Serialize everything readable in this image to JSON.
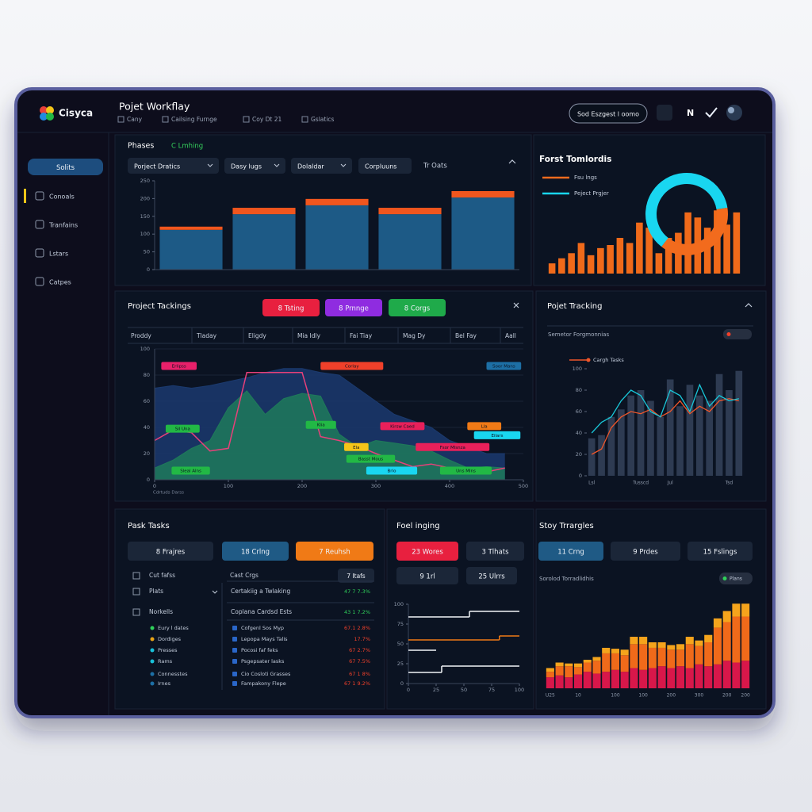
{
  "header": {
    "logo": "Cisyca",
    "title": "Pojet Workflay",
    "breadcrumbs": [
      "Cany",
      "Cailsing Furnge",
      "Coy Dt 21",
      "Gslatics"
    ],
    "search": "Sod Eszgest l oomo",
    "user_initial": "N"
  },
  "sidebar": {
    "button": "Solits",
    "items": [
      "Conoals",
      "Tranfains",
      "Lstars",
      "Catpes"
    ]
  },
  "panels": {
    "phases": {
      "title": "Phases",
      "status": "C Lmhing",
      "filters": [
        "Porject Dratics",
        "Dasy lugs",
        "Dolaldar",
        "Corpluuns"
      ],
      "link": "Tr Oats"
    },
    "forecast": {
      "title": "Forst Tomlordis"
    },
    "project_tracking": {
      "title": "Project Tackings",
      "tags": [
        "8 Tsting",
        "8 Prnnge",
        "8 Corgs"
      ],
      "columns": [
        "Proddy",
        "Tladay",
        "Eligdy",
        "Mia Idly",
        "Fai Tiay",
        "Mag Dy",
        "Bel Fay",
        "Aall"
      ],
      "caption": "Cdrtuds Darss"
    },
    "tracking": {
      "title": "Pojet Tracking",
      "subtitle": "Semetor Forgmonnias"
    },
    "tasks": {
      "title": "Pask Tasks",
      "tags": [
        "8 Frajres",
        "18 Crlng",
        "7 Reuhsh"
      ],
      "groups": [
        "Cut fafss",
        "Plats",
        "Norkells"
      ],
      "items": [
        "Eury l dates",
        "Dordiges",
        "Presses",
        "Rams",
        "Connesstes",
        "Irnes"
      ],
      "list_title": "Cast Crgs",
      "list_badge": "7 Itafs",
      "rows": [
        {
          "label": "Certakiig a Twlaking",
          "value": "47 7 7.3%"
        },
        {
          "label": "Coplana Cardsd Ests",
          "value": "43 1 7.2%"
        },
        {
          "label": "Cofgenl Sos Myp",
          "value": "67.1 2.8%"
        },
        {
          "label": "Lepopa Mays Talis",
          "value": "17.7%"
        },
        {
          "label": "Pocosi faf feks",
          "value": "67 2.7%"
        },
        {
          "label": "Psgepsater lasks",
          "value": "67 7.5%"
        },
        {
          "label": "Cio Cosloti Grasses",
          "value": "67 1 8%"
        },
        {
          "label": "Fampakony Flepe",
          "value": "67 1 9.2%"
        }
      ]
    },
    "feeling": {
      "title": "Foel inging",
      "tags": [
        "23 Wores",
        "3 Tlhats",
        "9 1rl",
        "25 Ulrrs"
      ]
    },
    "story": {
      "title": "Stoy Trrargles",
      "tags": [
        "11 Crng",
        "9 Prdes",
        "15 Fslings"
      ],
      "subtitle": "Sorolod Torradlidhis",
      "badge": "Plans"
    }
  },
  "chart_data": [
    {
      "type": "bar",
      "stacked": true,
      "categories": [
        null,
        null,
        null,
        null,
        null
      ],
      "series": [
        {
          "color": "#1d5a86",
          "values": [
            112,
            156,
            181,
            156,
            203
          ]
        },
        {
          "color": "#f0561e",
          "values": [
            9,
            18,
            18,
            18,
            18
          ]
        }
      ],
      "ylim": [
        0,
        250
      ],
      "yticks": [
        0,
        50,
        100,
        150,
        200,
        250
      ]
    },
    {
      "type": "bar",
      "color": "#f06a1a",
      "values": [
        10,
        15,
        20,
        30,
        18,
        25,
        28,
        35,
        30,
        50,
        45,
        20,
        35,
        40,
        60,
        55,
        45,
        62,
        48,
        60
      ],
      "ylim": [
        0,
        70
      ]
    },
    {
      "type": "pie",
      "donut": true,
      "categories": [
        "Fsu lngs",
        "Peject Prgjer"
      ],
      "values": [
        38,
        62
      ],
      "colors": [
        "#f26b1d",
        "#19d6f0"
      ]
    },
    {
      "type": "area",
      "x": [
        0,
        25,
        50,
        75,
        100,
        125,
        150,
        175,
        200,
        225,
        250,
        275,
        300,
        325,
        350,
        375,
        400,
        425,
        450,
        475
      ],
      "xlim": [
        0,
        500
      ],
      "xticks": [
        0,
        100,
        200,
        300,
        400,
        500
      ],
      "ylim": [
        0,
        100
      ],
      "yticks": [
        0,
        20,
        40,
        60,
        80,
        100
      ],
      "grid": true,
      "series": [
        {
          "color": "#1b3a6e",
          "fill": true,
          "values": [
            70,
            72,
            70,
            72,
            75,
            78,
            82,
            85,
            85,
            82,
            80,
            70,
            60,
            50,
            45,
            40,
            30,
            25,
            20,
            20
          ]
        },
        {
          "color": "#1f7a5a",
          "fill": true,
          "values": [
            9,
            15,
            24,
            30,
            55,
            68,
            50,
            62,
            66,
            64,
            35,
            25,
            30,
            28,
            26,
            22,
            15,
            9,
            10,
            9
          ]
        },
        {
          "color": "#e8407a",
          "fill": false,
          "values": [
            30,
            38,
            36,
            22,
            24,
            82,
            82,
            82,
            82,
            33,
            30,
            26,
            20,
            15,
            10,
            12,
            9,
            8,
            6,
            9
          ]
        }
      ],
      "tasks": [
        {
          "name": "Erlipss",
          "color": "#e8206a",
          "start": 9,
          "end": 57,
          "y": 87
        },
        {
          "name": "Corlay",
          "color": "#f0402a",
          "start": 225,
          "end": 310,
          "y": 87
        },
        {
          "name": "Soor Mans",
          "color": "#1d6fa5",
          "start": 450,
          "end": 497,
          "y": 87
        },
        {
          "name": "Sil Una",
          "color": "#22b845",
          "start": 15,
          "end": 61,
          "y": 39
        },
        {
          "name": "Klia",
          "color": "#22b845",
          "start": 205,
          "end": 246,
          "y": 42
        },
        {
          "name": "Kirsw Caed",
          "color": "#e8205a",
          "start": 306,
          "end": 366,
          "y": 41
        },
        {
          "name": "Lla",
          "color": "#f07a16",
          "start": 424,
          "end": 470,
          "y": 41
        },
        {
          "name": "Eilars",
          "color": "#19d6f0",
          "start": 433,
          "end": 496,
          "y": 34
        },
        {
          "name": "Fsor Mlsnza",
          "color": "#e8205a",
          "start": 354,
          "end": 454,
          "y": 25
        },
        {
          "name": "Ela",
          "color": "#f5c518",
          "start": 257,
          "end": 290,
          "y": 25
        },
        {
          "name": "Basst Mous",
          "color": "#22b845",
          "start": 260,
          "end": 326,
          "y": 16
        },
        {
          "name": "Brlo",
          "color": "#19d6f0",
          "start": 287,
          "end": 356,
          "y": 7
        },
        {
          "name": "Sleal Alns",
          "color": "#22b845",
          "start": 23,
          "end": 75,
          "y": 7
        },
        {
          "name": "Uns Mlns",
          "color": "#22b845",
          "start": 387,
          "end": 457,
          "y": 7
        }
      ]
    },
    {
      "type": "combo",
      "categories": [
        "Lsl",
        null,
        null,
        null,
        null,
        "Tusscd",
        null,
        null,
        "Jul",
        null,
        null,
        null,
        null,
        null,
        "Tsd",
        null
      ],
      "ylim": [
        0,
        100
      ],
      "yticks": [
        0,
        20,
        40,
        60,
        80,
        100
      ],
      "series": [
        {
          "color": "#2e3b52",
          "mark": "bar",
          "values": [
            35,
            38,
            55,
            62,
            75,
            80,
            70,
            55,
            90,
            65,
            85,
            75,
            70,
            95,
            80,
            98
          ]
        },
        {
          "name": "Cargh Tasks",
          "color": "#f0562a",
          "mark": "line",
          "values": [
            20,
            25,
            45,
            55,
            60,
            58,
            62,
            55,
            60,
            70,
            58,
            65,
            60,
            70,
            72,
            70
          ]
        },
        {
          "color": "#19c6d8",
          "mark": "line",
          "values": [
            40,
            50,
            55,
            70,
            80,
            75,
            60,
            55,
            80,
            75,
            60,
            85,
            65,
            75,
            70,
            72
          ]
        }
      ]
    },
    {
      "type": "step",
      "xlim": [
        0,
        100
      ],
      "xticks": [
        0,
        25,
        50,
        75,
        100
      ],
      "ylim": [
        0,
        100
      ],
      "yticks": [
        0,
        25,
        50,
        75,
        100
      ],
      "series": [
        {
          "color": "#f2f4f8",
          "x": [
            0,
            55
          ],
          "values": [
            84,
            91
          ],
          "end": 100
        },
        {
          "color": "#f07a16",
          "x": [
            0,
            82
          ],
          "values": [
            55,
            60
          ],
          "end": 100
        },
        {
          "color": "#f2f4f8",
          "x": [
            0
          ],
          "values": [
            42
          ],
          "end": 25
        },
        {
          "color": "#f2f4f8",
          "x": [
            0,
            30
          ],
          "values": [
            14,
            22
          ],
          "end": 100
        }
      ]
    },
    {
      "type": "bar",
      "stacked": true,
      "categories": [
        "U25",
        null,
        null,
        "10",
        null,
        null,
        null,
        "100",
        null,
        null,
        "100",
        null,
        null,
        "200",
        null,
        null,
        "300",
        null,
        null,
        "200",
        null,
        "200"
      ],
      "ylim": [
        0,
        100
      ],
      "series": [
        {
          "color": "#d8174a",
          "values": [
            12,
            14,
            12,
            15,
            18,
            16,
            18,
            20,
            18,
            22,
            20,
            22,
            24,
            22,
            24,
            22,
            26,
            24,
            26,
            30,
            28,
            30
          ]
        },
        {
          "color": "#f06a1a",
          "values": [
            6,
            10,
            12,
            8,
            10,
            14,
            20,
            18,
            18,
            26,
            28,
            22,
            20,
            20,
            18,
            26,
            20,
            26,
            40,
            42,
            50,
            48
          ]
        },
        {
          "color": "#f5a41c",
          "values": [
            4,
            4,
            3,
            4,
            3,
            4,
            6,
            5,
            6,
            8,
            8,
            6,
            6,
            5,
            6,
            8,
            6,
            8,
            10,
            12,
            14,
            14
          ]
        }
      ]
    }
  ]
}
